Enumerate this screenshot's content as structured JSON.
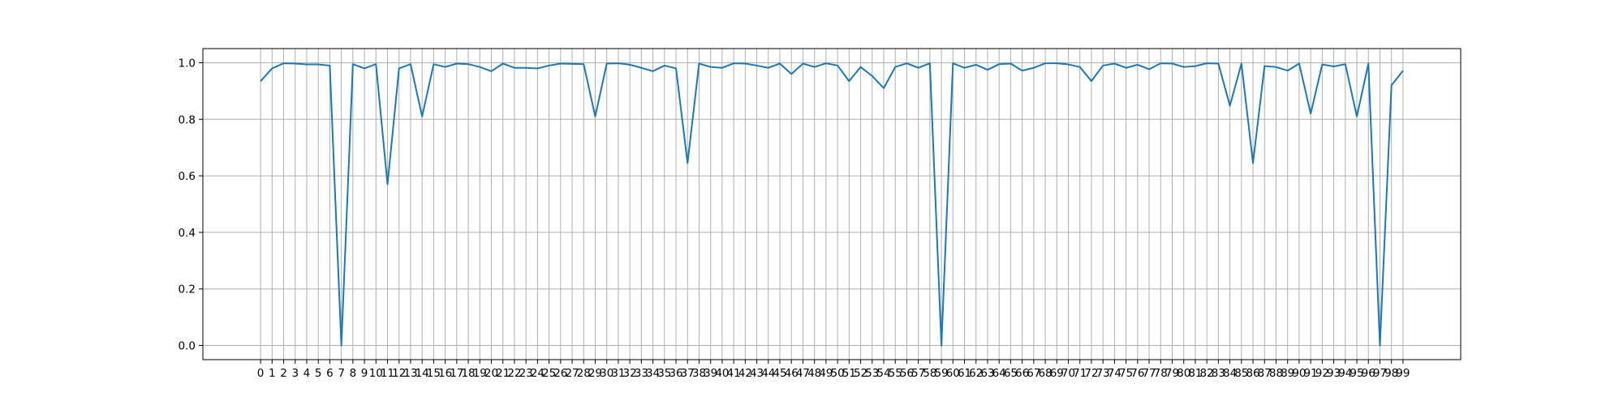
{
  "chart_data": {
    "type": "line",
    "title": "",
    "xlabel": "",
    "ylabel": "",
    "xlim": [
      -5,
      104
    ],
    "ylim": [
      -0.05,
      1.05
    ],
    "grid": true,
    "x_tick_labels": [
      "0",
      "1",
      "2",
      "3",
      "4",
      "5",
      "6",
      "7",
      "8",
      "9",
      "10",
      "11",
      "12",
      "13",
      "14",
      "15",
      "16",
      "17",
      "18",
      "19",
      "20",
      "21",
      "22",
      "23",
      "24",
      "25",
      "26",
      "27",
      "28",
      "29",
      "30",
      "31",
      "32",
      "33",
      "34",
      "35",
      "36",
      "37",
      "38",
      "39",
      "40",
      "41",
      "42",
      "43",
      "44",
      "45",
      "46",
      "47",
      "48",
      "49",
      "50",
      "51",
      "52",
      "53",
      "54",
      "55",
      "56",
      "57",
      "58",
      "59",
      "60",
      "61",
      "62",
      "63",
      "64",
      "65",
      "66",
      "67",
      "68",
      "69",
      "70",
      "71",
      "72",
      "73",
      "74",
      "75",
      "76",
      "77",
      "78",
      "79",
      "80",
      "81",
      "82",
      "83",
      "84",
      "85",
      "86",
      "87",
      "88",
      "89",
      "90",
      "91",
      "92",
      "93",
      "94",
      "95",
      "96",
      "97",
      "98",
      "99"
    ],
    "y_tick_labels": [
      "0.0",
      "0.2",
      "0.4",
      "0.6",
      "0.8",
      "1.0"
    ],
    "y_ticks": [
      0.0,
      0.2,
      0.4,
      0.6,
      0.8,
      1.0
    ],
    "x": [
      0,
      1,
      2,
      3,
      4,
      5,
      6,
      7,
      8,
      9,
      10,
      11,
      12,
      13,
      14,
      15,
      16,
      17,
      18,
      19,
      20,
      21,
      22,
      23,
      24,
      25,
      26,
      27,
      28,
      29,
      30,
      31,
      32,
      33,
      34,
      35,
      36,
      37,
      38,
      39,
      40,
      41,
      42,
      43,
      44,
      45,
      46,
      47,
      48,
      49,
      50,
      51,
      52,
      53,
      54,
      55,
      56,
      57,
      58,
      59,
      60,
      61,
      62,
      63,
      64,
      65,
      66,
      67,
      68,
      69,
      70,
      71,
      72,
      73,
      74,
      75,
      76,
      77,
      78,
      79,
      80,
      81,
      82,
      83,
      84,
      85,
      86,
      87,
      88,
      89,
      90,
      91,
      92,
      93,
      94,
      95,
      96,
      97,
      98,
      99
    ],
    "series": [
      {
        "color": "#1f77b4",
        "values": [
          0.935,
          0.98,
          0.998,
          0.997,
          0.994,
          0.994,
          0.99,
          0.0,
          0.995,
          0.98,
          0.995,
          0.57,
          0.98,
          0.995,
          0.81,
          0.995,
          0.985,
          0.997,
          0.995,
          0.985,
          0.97,
          0.997,
          0.982,
          0.982,
          0.98,
          0.99,
          0.997,
          0.996,
          0.995,
          0.81,
          0.997,
          0.998,
          0.993,
          0.982,
          0.97,
          0.99,
          0.98,
          0.645,
          0.997,
          0.985,
          0.982,
          0.998,
          0.997,
          0.99,
          0.982,
          0.997,
          0.96,
          0.997,
          0.985,
          0.998,
          0.99,
          0.935,
          0.985,
          0.953,
          0.91,
          0.985,
          0.998,
          0.982,
          0.998,
          0.0,
          0.998,
          0.982,
          0.993,
          0.975,
          0.995,
          0.997,
          0.972,
          0.982,
          0.998,
          0.998,
          0.994,
          0.985,
          0.935,
          0.99,
          0.997,
          0.982,
          0.993,
          0.977,
          0.998,
          0.997,
          0.985,
          0.988,
          0.998,
          0.997,
          0.848,
          0.997,
          0.645,
          0.988,
          0.985,
          0.972,
          0.997,
          0.82,
          0.994,
          0.987,
          0.995,
          0.81,
          0.997,
          0.0,
          0.92,
          0.972
        ]
      }
    ]
  },
  "colors": {
    "line": "#1f77b4",
    "grid": "#b0b0b0",
    "axes": "#000000"
  }
}
